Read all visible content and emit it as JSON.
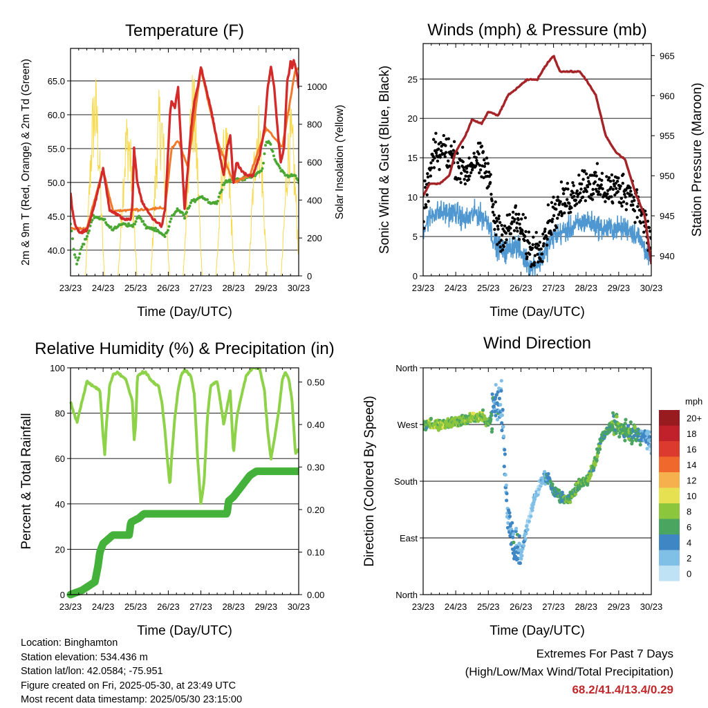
{
  "chart_data": [
    {
      "type": "line",
      "title": "Temperature (F)",
      "xlabel": "Time (Day/UTC)",
      "ylabel": "2m & 9m T (Red, Orange) & 2m Td (Green)",
      "ylabel_right": "Solar Insolation (Yellow)",
      "x_ticks": [
        "23/23",
        "24/23",
        "25/23",
        "26/23",
        "27/23",
        "28/23",
        "29/23",
        "30/23"
      ],
      "y_ticks": [
        "40.0",
        "45.0",
        "50.0",
        "55.0",
        "60.0",
        "65.0"
      ],
      "y_ticks_right": [
        "0",
        "200",
        "400",
        "600",
        "800",
        "1000"
      ],
      "ylim": [
        36.2,
        69.8
      ],
      "ylim_right": [
        0,
        1200
      ],
      "grid": "horizontal",
      "series": [
        {
          "name": "2m T",
          "color": "#d42a2a",
          "x": [
            0,
            0.05,
            0.15,
            0.3,
            0.5,
            0.7,
            0.9,
            1.0,
            1.1,
            1.2,
            1.35,
            1.5,
            1.7,
            1.85,
            1.9,
            1.95,
            2.05,
            2.2,
            2.4,
            2.55,
            2.7,
            2.8,
            2.9,
            3.0,
            3.05,
            3.1,
            3.2,
            3.3,
            3.4,
            3.5,
            3.6,
            3.7,
            3.8,
            3.9,
            4.0,
            4.1,
            4.3,
            4.5,
            4.7,
            4.8,
            4.9,
            5.0,
            5.1,
            5.2,
            5.4,
            5.6,
            5.8,
            5.95,
            6.05,
            6.15,
            6.25,
            6.35,
            6.45,
            6.55,
            6.6,
            6.65,
            6.7,
            6.75,
            6.8,
            6.85,
            6.9,
            6.95,
            7.0
          ],
          "y": [
            48.5,
            46,
            43.5,
            42.5,
            43,
            46,
            50,
            52,
            49,
            46,
            45.5,
            45,
            44.5,
            44.5,
            47,
            55,
            50,
            47,
            45.5,
            44.5,
            44,
            43.5,
            46,
            55,
            60,
            62,
            61,
            64,
            55,
            46,
            52,
            58,
            62,
            64,
            67,
            65,
            61,
            56,
            51,
            55,
            57,
            50,
            53,
            52,
            51,
            51,
            54,
            58,
            64,
            67,
            64,
            58,
            53,
            55,
            60,
            65,
            66,
            68,
            67,
            68,
            67,
            66,
            64
          ]
        },
        {
          "name": "9m T",
          "color": "#f07a2a",
          "x": [
            0.5,
            0.9,
            1.0,
            1.3,
            2.9,
            3.1,
            3.3,
            3.6,
            4.0,
            4.5,
            5.0,
            5.5,
            6.0,
            6.5,
            6.9
          ],
          "y": [
            43.2,
            50.2,
            51.8,
            45.8,
            46.2,
            55.0,
            56.2,
            52.2,
            66.8,
            56.2,
            50.0,
            51.0,
            58.0,
            55.2,
            66.8
          ]
        },
        {
          "name": "2m Td",
          "color": "#4aa832",
          "x": [
            0,
            0.1,
            0.2,
            0.3,
            0.5,
            0.7,
            1.0,
            1.3,
            1.6,
            1.9,
            2.1,
            2.3,
            2.6,
            2.9,
            3.0,
            3.1,
            3.3,
            3.5,
            3.7,
            4.0,
            4.3,
            4.5,
            4.7,
            5.0,
            5.3,
            5.6,
            5.9,
            6.0,
            6.1,
            6.3,
            6.6,
            6.9,
            7.0
          ],
          "y": [
            44,
            40,
            38,
            40,
            42,
            45,
            44.5,
            43,
            44,
            43.5,
            45,
            43.5,
            43,
            42,
            43,
            45,
            46,
            45,
            47,
            48,
            47,
            47,
            50,
            50.5,
            50.5,
            51,
            52,
            56,
            56,
            53,
            51,
            51,
            50
          ]
        },
        {
          "name": "Solar Insolation",
          "color": "#f7d94c",
          "axis": "right",
          "days": [
            0,
            1,
            2,
            3,
            4,
            5,
            6
          ],
          "peaks": [
            1090,
            900,
            1010,
            1100,
            820,
            950,
            900
          ]
        }
      ]
    },
    {
      "type": "scatter",
      "title": "Winds (mph) & Pressure (mb)",
      "xlabel": "Time (Day/UTC)",
      "ylabel": "Sonic Wind & Gust (Blue, Black)",
      "ylabel_right": "Station Pressure (Maroon)",
      "x_ticks": [
        "23/23",
        "24/23",
        "25/23",
        "26/23",
        "27/23",
        "28/23",
        "29/23",
        "30/23"
      ],
      "y_ticks": [
        "0",
        "5",
        "10",
        "15",
        "20",
        "25"
      ],
      "y_ticks_right": [
        "940",
        "945",
        "950",
        "955",
        "960",
        "965"
      ],
      "ylim": [
        0,
        29.5
      ],
      "ylim_right": [
        937.5,
        966.5
      ],
      "grid": "horizontal",
      "series": [
        {
          "name": "Wind",
          "color": "#4f97d1",
          "x": [
            0,
            0.3,
            0.6,
            1,
            1.3,
            1.6,
            2,
            2.2,
            2.5,
            2.8,
            3,
            3.3,
            3.6,
            4,
            4.5,
            5,
            5.5,
            6,
            6.3,
            6.6,
            7
          ],
          "y": [
            6,
            8,
            8,
            8,
            7,
            8,
            7,
            4,
            3,
            4,
            3,
            1,
            2,
            5,
            6,
            7,
            6,
            6,
            6,
            5,
            2
          ]
        },
        {
          "name": "Gust",
          "color": "#000000",
          "x": [
            0,
            0.3,
            0.6,
            1,
            1.3,
            1.6,
            2,
            2.2,
            2.5,
            2.8,
            3,
            3.3,
            3.6,
            4,
            4.5,
            5,
            5.5,
            6,
            6.3,
            6.6,
            7
          ],
          "y": [
            8,
            15,
            16,
            15,
            13,
            15,
            13,
            7,
            5,
            7,
            6,
            3,
            4,
            8,
            10,
            12,
            11,
            11,
            11,
            9,
            4
          ]
        },
        {
          "name": "Station Pressure",
          "color": "#a52428",
          "axis": "right",
          "x": [
            0,
            0.2,
            0.5,
            0.8,
            1.0,
            1.3,
            1.5,
            1.8,
            2.0,
            2.3,
            2.6,
            2.9,
            3.2,
            3.5,
            3.8,
            4.0,
            4.2,
            4.5,
            4.8,
            5.0,
            5.3,
            5.6,
            5.9,
            6.2,
            6.5,
            6.8,
            6.9,
            7.0
          ],
          "y": [
            947.5,
            949,
            949,
            950,
            953,
            955,
            957,
            956.5,
            958,
            957.5,
            960,
            961,
            962,
            962,
            964,
            965,
            963,
            963,
            963,
            962,
            960,
            955,
            953,
            952,
            948,
            945,
            942,
            939
          ]
        }
      ]
    },
    {
      "type": "line",
      "title": "Relative Humidity (%) & Precipitation (in)",
      "xlabel": "Time (Day/UTC)",
      "ylabel": "Percent & Total Rainfall",
      "x_ticks": [
        "23/23",
        "24/23",
        "25/23",
        "26/23",
        "27/23",
        "28/23",
        "29/23",
        "30/23"
      ],
      "y_ticks": [
        "0",
        "20",
        "40",
        "60",
        "80",
        "100"
      ],
      "y_ticks_right": [
        "0.00",
        "0.10",
        "0.20",
        "0.30",
        "0.40",
        "0.50"
      ],
      "ylim": [
        0,
        100
      ],
      "ylim_right": [
        0,
        0.5333
      ],
      "grid": "horizontal",
      "series": [
        {
          "name": "Relative Humidity",
          "color": "#8ed24a",
          "x": [
            0,
            0.1,
            0.2,
            0.3,
            0.5,
            0.7,
            0.9,
            1.0,
            1.05,
            1.1,
            1.2,
            1.3,
            1.45,
            1.6,
            1.7,
            1.8,
            1.9,
            1.95,
            2.0,
            2.05,
            2.2,
            2.3,
            2.5,
            2.7,
            2.8,
            2.9,
            3.0,
            3.05,
            3.1,
            3.2,
            3.3,
            3.4,
            3.5,
            3.6,
            3.7,
            3.8,
            3.9,
            4.0,
            4.1,
            4.2,
            4.3,
            4.5,
            4.6,
            4.7,
            4.9,
            5.0,
            5.1,
            5.2,
            5.4,
            5.6,
            5.7,
            5.8,
            5.95,
            6.05,
            6.15,
            6.25,
            6.4,
            6.5,
            6.6,
            6.7,
            6.8,
            6.9,
            7.0
          ],
          "y": [
            85,
            80,
            76,
            82,
            94,
            92,
            90,
            70,
            62,
            75,
            92,
            97,
            98,
            96,
            95,
            90,
            85,
            68,
            75,
            96,
            98,
            98,
            94,
            92,
            85,
            72,
            55,
            48,
            60,
            78,
            90,
            97,
            99,
            98,
            96,
            88,
            60,
            40,
            50,
            78,
            92,
            94,
            85,
            75,
            90,
            62,
            78,
            85,
            97,
            100,
            100,
            100,
            90,
            72,
            60,
            68,
            82,
            95,
            98,
            95,
            85,
            62,
            64
          ]
        },
        {
          "name": "Total Rainfall",
          "color": "#44b23a",
          "axis": "right",
          "x": [
            0,
            0.35,
            0.55,
            0.75,
            0.8,
            0.85,
            0.9,
            1.0,
            1.15,
            1.3,
            1.8,
            1.85,
            2.1,
            2.25,
            2.3,
            3.0,
            3.5,
            4.0,
            4.5,
            4.8,
            4.85,
            5.0,
            5.1,
            5.3,
            5.5,
            5.7,
            6.5,
            7.0
          ],
          "y": [
            0,
            0.01,
            0.02,
            0.03,
            0.05,
            0.07,
            0.1,
            0.12,
            0.13,
            0.14,
            0.14,
            0.17,
            0.18,
            0.19,
            0.19,
            0.19,
            0.19,
            0.19,
            0.19,
            0.19,
            0.22,
            0.23,
            0.24,
            0.26,
            0.28,
            0.29,
            0.29,
            0.29
          ]
        }
      ]
    },
    {
      "type": "scatter",
      "title": "Wind Direction",
      "xlabel": "Time (Day/UTC)",
      "ylabel": "Direction (Colored By Speed)",
      "x_ticks": [
        "23/23",
        "24/23",
        "25/23",
        "26/23",
        "27/23",
        "28/23",
        "29/23",
        "30/23"
      ],
      "y_ticks": [
        "North",
        "East",
        "South",
        "West",
        "North"
      ],
      "y_tick_values": [
        0,
        90,
        180,
        270,
        360
      ],
      "ylim": [
        0,
        360
      ],
      "grid": "horizontal",
      "legend": {
        "title": "mph",
        "placement": "right",
        "labels": [
          "0",
          "2",
          "4",
          "6",
          "8",
          "10",
          "12",
          "14",
          "16",
          "18",
          "20+"
        ],
        "colors": [
          "#bfe2f5",
          "#80bfe6",
          "#3f86c5",
          "#4aa560",
          "#8cc63c",
          "#e6e150",
          "#f6b04e",
          "#f0682c",
          "#dc3a2e",
          "#c0212b",
          "#971b1f"
        ]
      },
      "series": [
        {
          "name": "Direction",
          "x": [
            0,
            0.5,
            1,
            1.5,
            1.8,
            2,
            2.2,
            2.4,
            2.6,
            2.8,
            3,
            3.2,
            3.4,
            3.6,
            3.8,
            4,
            4.2,
            4.4,
            4.6,
            4.8,
            5,
            5.2,
            5.5,
            5.8,
            6,
            6.3,
            6.6,
            6.9,
            7.0
          ],
          "y": [
            270,
            270,
            275,
            280,
            285,
            270,
            300,
            310,
            120,
            80,
            60,
            110,
            150,
            175,
            190,
            165,
            155,
            150,
            160,
            175,
            180,
            200,
            250,
            270,
            265,
            260,
            255,
            250,
            230
          ]
        }
      ]
    }
  ],
  "info": {
    "location": "Location: Binghamton",
    "elevation": "Station elevation: 534.436 m",
    "latlon": "Station lat/lon: 42.0584; -75.951",
    "created": "Figure created on Fri, 2025-05-30, at 23:49 UTC",
    "recent": "Most recent data timestamp: 2025/05/30 23:15:00"
  },
  "extremes": {
    "title": "Extremes For Past 7 Days",
    "subtitle": "(High/Low/Max Wind/Total Precipitation)",
    "values": "68.2/41.4/13.4/0.29"
  }
}
